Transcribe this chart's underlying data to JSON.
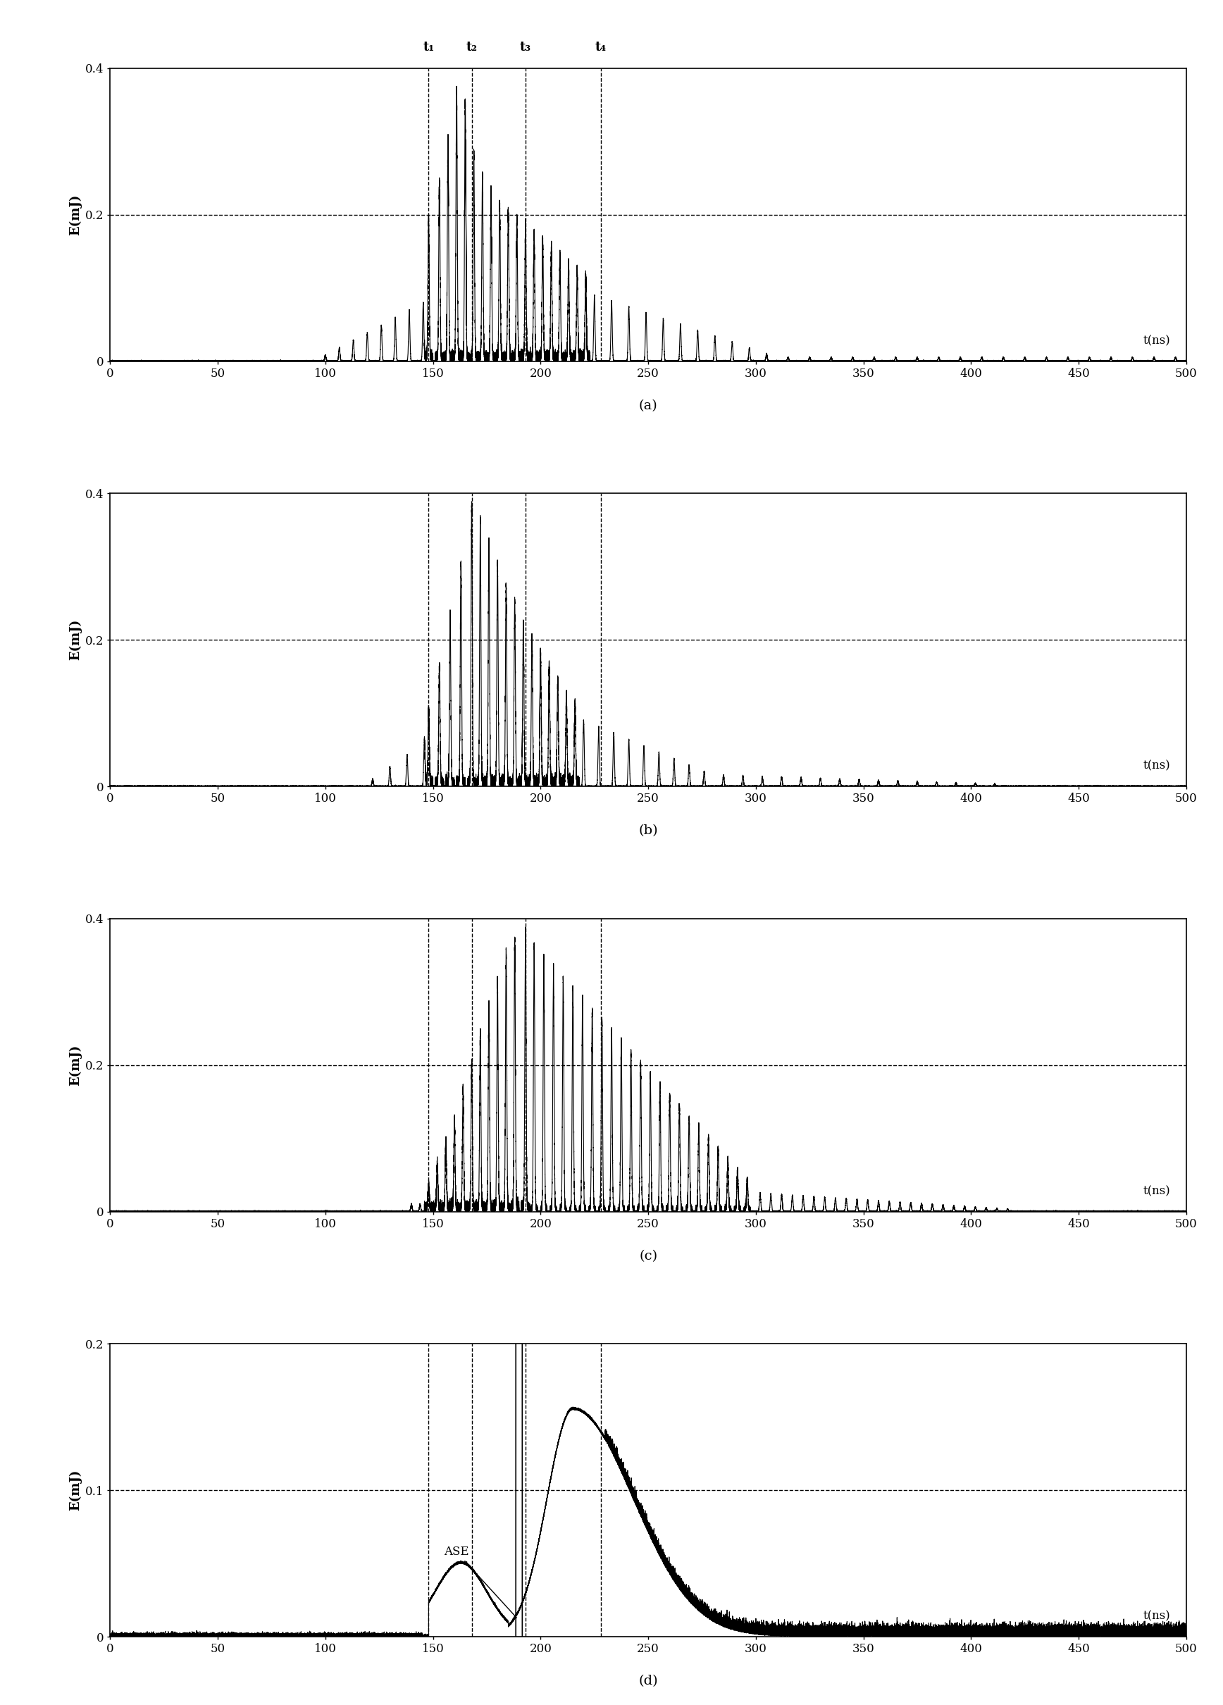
{
  "xlim": [
    0,
    500
  ],
  "xticks": [
    0,
    50,
    100,
    150,
    200,
    250,
    300,
    350,
    400,
    450,
    500
  ],
  "plots_abc": {
    "ylim": [
      0,
      0.4
    ],
    "yticks": [
      0,
      0.2,
      0.4
    ],
    "hline": 0.2,
    "ylabel": "E(mJ)"
  },
  "plot_d": {
    "ylim": [
      0,
      0.2
    ],
    "yticks": [
      0,
      0.1,
      0.2
    ],
    "hline": 0.1,
    "ylabel": "E(mJ)"
  },
  "vlines": [
    148,
    168,
    193,
    228
  ],
  "t_labels": [
    "t₁",
    "t₂",
    "t₃",
    "t₄"
  ],
  "xlabel": "t(ns)",
  "subplot_labels": [
    "(a)",
    "(b)",
    "(c)",
    "(d)"
  ]
}
